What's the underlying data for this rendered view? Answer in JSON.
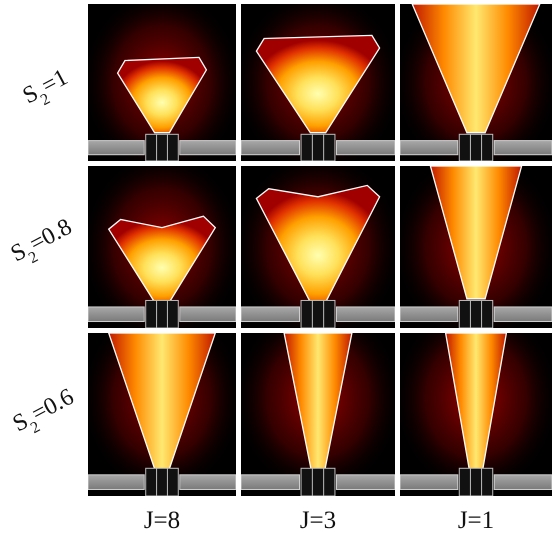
{
  "figure": {
    "row_labels": [
      {
        "base": "S",
        "sub": "2",
        "rest": "=1"
      },
      {
        "base": "S",
        "sub": "2",
        "rest": "=0.8"
      },
      {
        "base": "S",
        "sub": "2",
        "rest": "=0.6"
      }
    ],
    "column_labels": [
      "J=8",
      "J=3",
      "J=1"
    ],
    "colors": {
      "background": "#000000",
      "grid_separator": "#ffffff",
      "plate": "#8c8c8c",
      "plate_edge": "#cfcfcf",
      "flame_hot": "#ffffa0",
      "flame_mid": "#ffb400",
      "flame_low": "#d22000",
      "flame_glow": "#8a0000",
      "contour": "#ffffff"
    }
  }
}
